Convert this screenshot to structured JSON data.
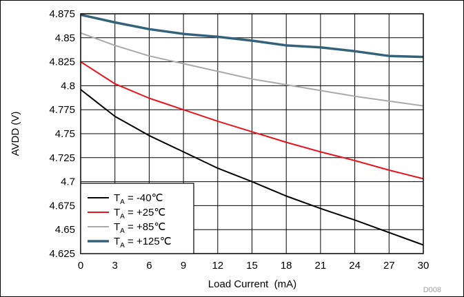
{
  "chart_data": {
    "type": "line",
    "xlabel": "Load Current  (mA)",
    "ylabel": "AVDD (V)",
    "figure_id": "D008",
    "xlim": [
      0,
      30
    ],
    "ylim": [
      4.625,
      4.875
    ],
    "x_ticks": [
      0,
      3,
      6,
      9,
      12,
      15,
      18,
      21,
      24,
      27,
      30
    ],
    "x_tick_labels": [
      "0",
      "3",
      "6",
      "9",
      "12",
      "15",
      "18",
      "21",
      "24",
      "27",
      "30"
    ],
    "y_ticks": [
      4.625,
      4.65,
      4.675,
      4.7,
      4.725,
      4.75,
      4.775,
      4.8,
      4.825,
      4.85,
      4.875
    ],
    "y_tick_labels": [
      "4.625",
      "4.65",
      "4.675",
      "4.7",
      "4.725",
      "4.75",
      "4.775",
      "4.8",
      "4.825",
      "4.85",
      "4.875"
    ],
    "grid": true,
    "legend_position": "bottom-left",
    "series": [
      {
        "name": "T",
        "sub": "A",
        "suffix": " = -40℃",
        "color": "#000000",
        "x": [
          0,
          3,
          6,
          9,
          12,
          15,
          18,
          21,
          24,
          27,
          30
        ],
        "y": [
          4.796,
          4.768,
          4.748,
          4.731,
          4.714,
          4.7,
          4.685,
          4.672,
          4.66,
          4.647,
          4.634
        ]
      },
      {
        "name": "T",
        "sub": "A",
        "suffix": " = +25℃",
        "color": "#e8141b",
        "x": [
          0,
          3,
          6,
          9,
          12,
          15,
          18,
          21,
          24,
          27,
          30
        ],
        "y": [
          4.825,
          4.802,
          4.787,
          4.775,
          4.763,
          4.752,
          4.741,
          4.731,
          4.722,
          4.712,
          4.703
        ]
      },
      {
        "name": "T",
        "sub": "A",
        "suffix": " = +85℃",
        "color": "#a9a9a9",
        "x": [
          0,
          3,
          6,
          9,
          12,
          15,
          18,
          21,
          24,
          27,
          30
        ],
        "y": [
          4.855,
          4.842,
          4.831,
          4.823,
          4.815,
          4.807,
          4.801,
          4.795,
          4.789,
          4.784,
          4.779
        ]
      },
      {
        "name": "T",
        "sub": "A",
        "suffix": " = +125℃",
        "color": "#33637a",
        "x": [
          0,
          3,
          6,
          9,
          12,
          15,
          18,
          21,
          24,
          27,
          30
        ],
        "y": [
          4.874,
          4.866,
          4.859,
          4.854,
          4.851,
          4.847,
          4.842,
          4.84,
          4.836,
          4.831,
          4.83
        ]
      }
    ]
  }
}
